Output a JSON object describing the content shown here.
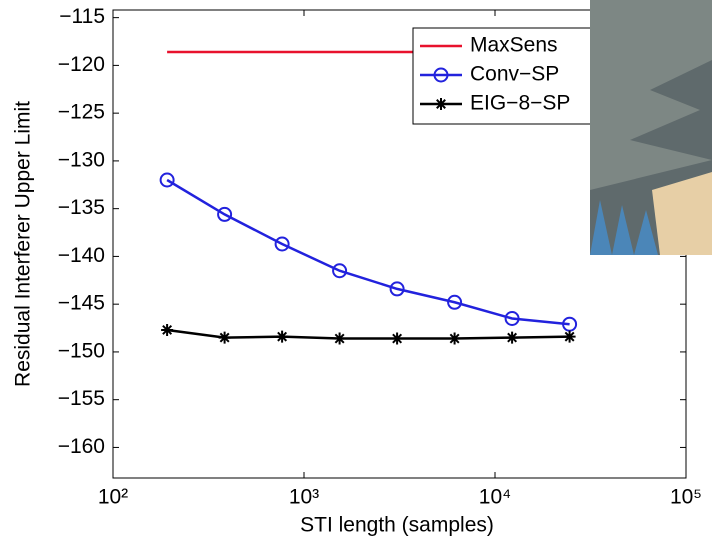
{
  "chart_data": {
    "type": "line",
    "xlabel": "STI length (samples)",
    "ylabel": "Residual Interferer Upper Limit",
    "x": [
      192,
      384,
      768,
      1536,
      3072,
      6144,
      12288,
      24576
    ],
    "xscale": "log",
    "xlim": [
      100,
      100000
    ],
    "xticks": [
      {
        "value": 100,
        "label": "10²"
      },
      {
        "value": 1000,
        "label": "10³"
      },
      {
        "value": 10000,
        "label": "10⁴"
      },
      {
        "value": 100000,
        "label": "10⁵"
      }
    ],
    "ylim": [
      -163.2,
      -114.2
    ],
    "yticks": [
      {
        "value": -115,
        "label": "−115"
      },
      {
        "value": -120,
        "label": "−120"
      },
      {
        "value": -125,
        "label": "−125"
      },
      {
        "value": -130,
        "label": "−130"
      },
      {
        "value": -135,
        "label": "−135"
      },
      {
        "value": -140,
        "label": "−140"
      },
      {
        "value": -145,
        "label": "−145"
      },
      {
        "value": -150,
        "label": "−150"
      },
      {
        "value": -155,
        "label": "−155"
      },
      {
        "value": -160,
        "label": "−160"
      }
    ],
    "legend": "upper right",
    "series": [
      {
        "name": "MaxSens",
        "color": "#e8112d",
        "marker": "none",
        "values": [
          -118.6,
          -118.6,
          -118.6,
          -118.6,
          -118.6,
          -118.6,
          -118.6,
          -118.6
        ]
      },
      {
        "name": "Conv−SP",
        "color": "#2222dd",
        "marker": "circle",
        "values": [
          -132,
          -135.6,
          -138.7,
          -141.5,
          -143.4,
          -144.8,
          -146.5,
          -147.1
        ]
      },
      {
        "name": "EIG−8−SP",
        "color": "#000000",
        "marker": "asterisk",
        "values": [
          -147.7,
          -148.5,
          -148.4,
          -148.6,
          -148.6,
          -148.6,
          -148.5,
          -148.4
        ]
      }
    ]
  }
}
